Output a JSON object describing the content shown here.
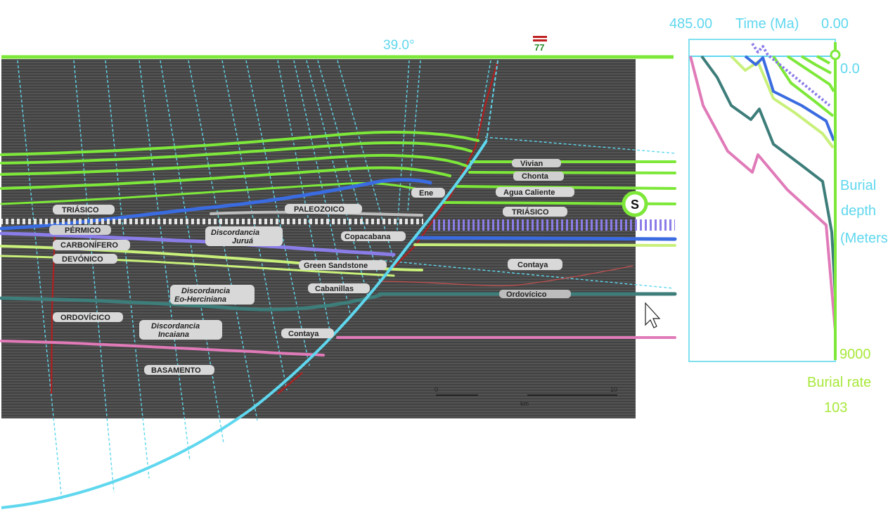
{
  "header": {
    "angle_label": "39.0°",
    "fault_symbol": "77"
  },
  "section_labels": {
    "triasico_left": "TRIÁSICO",
    "permico": "PÉRMICO",
    "carbonifero": "CARBONÍFERO",
    "devonico": "DEVÓNICO",
    "ordovicico": "ORDOVÍCICO",
    "basamento": "BASAMENTO",
    "paleozoico": "PALEOZOICO",
    "copacabana": "Copacabana",
    "green_sandstone": "Green Sandstone",
    "cabanillas": "Cabanillas",
    "contaya_center": "Contaya",
    "ene": "Ene",
    "disc_jurua_1": "Discordancia",
    "disc_jurua_2": "Juruá",
    "disc_eo_1": "Discordancia",
    "disc_eo_2": "Eo-Herciniana",
    "disc_inc_1": "Discordancia",
    "disc_inc_2": "Incaiana",
    "chonta": "Chonta",
    "vivian": "Vivian",
    "agua_caliente": "Agua Caliente",
    "triasico_right": "TRIÁSICO",
    "contaya_right": "Contaya",
    "ordovicico_right": "Ordovícico",
    "scale_start": "0",
    "scale_end": "10",
    "scale_unit": "km"
  },
  "marker": {
    "label": "S"
  },
  "burial_panel": {
    "time_max": "485.00",
    "time_title": "Time (Ma)",
    "time_min": "0.00",
    "depth_top": "0.0",
    "depth_label_1": "Burial",
    "depth_label_2": "depth",
    "depth_label_3": "(Meters)",
    "depth_bottom": "9000",
    "rate_label": "Burial rate",
    "rate_value": "103"
  },
  "colors": {
    "seismic_bg": "#4b4b4b",
    "green_horizon": "#7ee83a",
    "light_green_horizon": "#c8f07a",
    "blue_horizon": "#3a6be0",
    "purple_horizon": "#8a7de8",
    "teal_horizon": "#3d7d7a",
    "pink_horizon": "#e07ab8",
    "cyan_guide": "#5fd7ee",
    "fault_red": "#b02020"
  }
}
